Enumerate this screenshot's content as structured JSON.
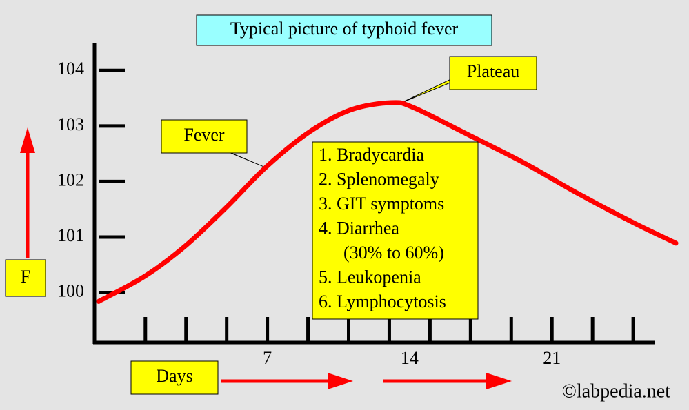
{
  "chart_data": {
    "type": "line",
    "title": "Typical picture of typhoid fever",
    "ylabel": "F",
    "xlabel": "Days",
    "x": [
      -1.3,
      1,
      3,
      5,
      7,
      9.1,
      11.1,
      13.1,
      14.2,
      16.9,
      19.6,
      22.3,
      25,
      27.1
    ],
    "values": [
      99.84,
      100.3,
      100.85,
      101.54,
      102.28,
      102.9,
      103.29,
      103.42,
      103.33,
      102.84,
      102.34,
      101.78,
      101.26,
      100.89
    ],
    "color": "#ff0000",
    "xlim": [
      -1.3,
      27.1
    ],
    "ylim": [
      99.1,
      104.5
    ],
    "xticks": [
      7,
      14,
      21
    ],
    "minor_xticks": [
      1,
      3,
      5,
      7,
      9,
      11,
      13,
      15,
      17,
      19,
      21,
      23,
      25
    ],
    "yticks": [
      100,
      101,
      102,
      103,
      104
    ],
    "annotations": [
      "Fever",
      "Plateau"
    ],
    "box_items": [
      "1. Bradycardia",
      "2. Splenomegaly",
      "3. GIT symptoms",
      "4. Diarrhea",
      "(30% to 60%)",
      "5. Leukopenia",
      "6. Lymphocytosis"
    ],
    "watermark": "©labpedia.net"
  }
}
